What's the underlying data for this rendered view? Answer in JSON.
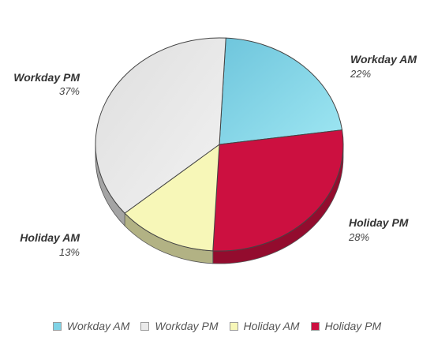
{
  "chart_data": {
    "type": "pie",
    "title": "",
    "three_d": true,
    "legend_position": "bottom",
    "slices": [
      {
        "name": "Workday AM",
        "label": "Workday AM",
        "percent_text": "22%",
        "value": 22,
        "color": "#7fd3e6"
      },
      {
        "name": "Holiday PM",
        "label": "Holiday PM",
        "percent_text": "28%",
        "value": 28,
        "color": "#cc1040"
      },
      {
        "name": "Holiday AM",
        "label": "Holiday AM",
        "percent_text": "13%",
        "value": 13,
        "color": "#f7f7b8"
      },
      {
        "name": "Workday PM",
        "label": "Workday PM",
        "percent_text": "37%",
        "value": 37,
        "color": "#e4e4e4"
      }
    ],
    "legend": [
      "Workday AM",
      "Workday PM",
      "Holiday AM",
      "Holiday PM"
    ]
  }
}
